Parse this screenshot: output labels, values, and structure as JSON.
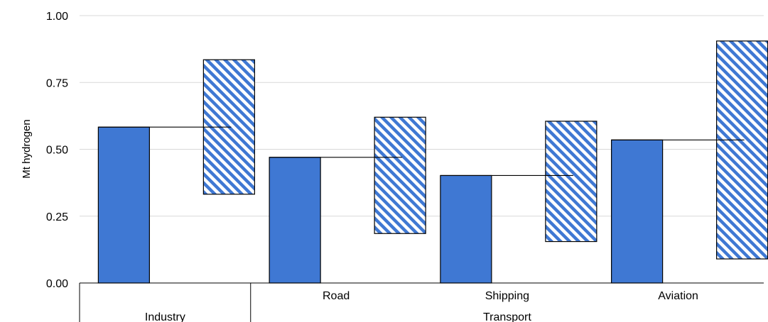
{
  "chart_data": {
    "type": "bar",
    "ylabel": "Mt hydrogen",
    "ylim": [
      0,
      1
    ],
    "yticks": [
      "0.00",
      "0.25",
      "0.50",
      "0.75",
      "1.00"
    ],
    "grid": true,
    "categories": [
      "Industry",
      "Road",
      "Shipping",
      "Aviation"
    ],
    "groups": [
      {
        "label": "Industry",
        "members": [
          "Industry"
        ]
      },
      {
        "label": "Transport",
        "members": [
          "Road",
          "Shipping",
          "Aviation"
        ]
      }
    ],
    "sublabels": [
      "",
      "Road",
      "Shipping",
      "Aviation"
    ],
    "series": [
      {
        "values": [
          0.583,
          0.47,
          0.402,
          0.535
        ],
        "style": "solid",
        "color": "#3f78d3"
      },
      {
        "low": [
          0.332,
          0.185,
          0.155,
          0.09
        ],
        "high": [
          0.835,
          0.62,
          0.605,
          0.905
        ],
        "style": "hatched",
        "color": "#3f78d3"
      }
    ]
  }
}
